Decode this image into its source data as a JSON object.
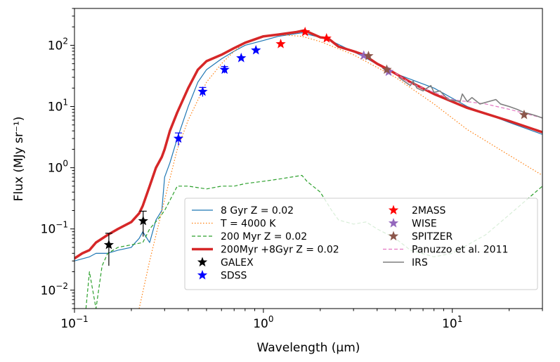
{
  "chart_data": {
    "type": "line",
    "xscale": "log",
    "yscale": "log",
    "xlim": [
      0.1,
      30
    ],
    "ylim": [
      0.005,
      400
    ],
    "xlabel": "Wavelength (μm)",
    "ylabel": "Flux (MJy sr⁻¹)",
    "x_ticks": [
      {
        "value": 0.1,
        "base": "10",
        "exp": "−1"
      },
      {
        "value": 1,
        "base": "10",
        "exp": "0"
      },
      {
        "value": 10,
        "base": "10",
        "exp": "1"
      }
    ],
    "y_ticks": [
      {
        "value": 0.01,
        "base": "10",
        "exp": "−2"
      },
      {
        "value": 0.1,
        "base": "10",
        "exp": "−1"
      },
      {
        "value": 1,
        "base": "10",
        "exp": "0"
      },
      {
        "value": 10,
        "base": "10",
        "exp": "1"
      },
      {
        "value": 100,
        "base": "10",
        "exp": "2"
      }
    ],
    "series": [
      {
        "name": "8 Gyr Z = 0.02",
        "style": "solid",
        "color": "#1f77b4",
        "width": 1.2,
        "x": [
          0.1,
          0.12,
          0.13,
          0.15,
          0.17,
          0.2,
          0.21,
          0.22,
          0.23,
          0.25,
          0.27,
          0.29,
          0.3,
          0.32,
          0.35,
          0.4,
          0.45,
          0.5,
          0.6,
          0.7,
          0.8,
          1.0,
          1.2,
          1.6,
          2.2,
          3.4,
          4.6,
          8,
          12,
          20,
          30
        ],
        "y": [
          0.03,
          0.035,
          0.04,
          0.04,
          0.045,
          0.05,
          0.06,
          0.07,
          0.09,
          0.06,
          0.14,
          0.2,
          0.7,
          1.2,
          3,
          10,
          25,
          40,
          60,
          80,
          100,
          120,
          140,
          160,
          125,
          65,
          38,
          20,
          10,
          5.5,
          3.5
        ]
      },
      {
        "name": "T = 4000 K",
        "style": "dotted",
        "color": "#ff7f0e",
        "width": 1.2,
        "x": [
          0.22,
          0.25,
          0.3,
          0.35,
          0.4,
          0.5,
          0.6,
          0.7,
          0.8,
          1.0,
          1.2,
          1.6,
          2.0,
          3,
          5,
          8,
          12,
          20,
          30
        ],
        "y": [
          0.005,
          0.03,
          0.3,
          2,
          6,
          25,
          50,
          80,
          110,
          140,
          150,
          140,
          115,
          70,
          30,
          11,
          4.2,
          1.6,
          0.75
        ]
      },
      {
        "name": "200 Myr Z = 0.02",
        "style": "dashed",
        "color": "#2ca02c",
        "width": 1.2,
        "x": [
          0.115,
          0.12,
          0.13,
          0.14,
          0.15,
          0.17,
          0.2,
          0.23,
          0.25,
          0.28,
          0.3,
          0.35,
          0.4,
          0.5,
          0.6,
          0.7,
          0.8,
          1.0,
          1.2,
          1.6,
          1.7,
          2.0,
          2.3,
          2.5,
          3,
          3.5,
          4,
          5,
          6,
          8,
          10,
          15,
          20,
          30
        ],
        "y": [
          0.005,
          0.02,
          0.005,
          0.025,
          0.04,
          0.05,
          0.055,
          0.06,
          0.1,
          0.15,
          0.2,
          0.5,
          0.5,
          0.45,
          0.5,
          0.5,
          0.55,
          0.6,
          0.65,
          0.75,
          0.6,
          0.4,
          0.2,
          0.14,
          0.12,
          0.13,
          0.1,
          0.07,
          0.045,
          0.035,
          0.04,
          0.08,
          0.17,
          0.5
        ]
      },
      {
        "name": "200Myr +8Gyr  Z = 0.02",
        "style": "solid",
        "color": "#d62728",
        "width": 3.5,
        "x": [
          0.1,
          0.11,
          0.12,
          0.13,
          0.15,
          0.17,
          0.2,
          0.22,
          0.23,
          0.25,
          0.27,
          0.29,
          0.3,
          0.32,
          0.35,
          0.4,
          0.45,
          0.5,
          0.6,
          0.7,
          0.8,
          1.0,
          1.2,
          1.5,
          1.65,
          2.0,
          2.2,
          2.5,
          3,
          3.4,
          4,
          4.6,
          6,
          8,
          12,
          20,
          30
        ],
        "y": [
          0.033,
          0.04,
          0.045,
          0.06,
          0.08,
          0.1,
          0.13,
          0.18,
          0.24,
          0.5,
          1,
          1.5,
          2,
          4,
          8,
          20,
          40,
          55,
          70,
          90,
          110,
          140,
          150,
          165,
          175,
          135,
          130,
          95,
          80,
          70,
          50,
          40,
          25,
          16,
          9.5,
          5.8,
          3.8
        ]
      },
      {
        "name": "Panuzzo et al. 2011",
        "style": "dashed",
        "color": "#e377c2",
        "width": 1.2,
        "x": [
          5,
          6,
          8,
          10,
          12,
          15,
          20,
          25,
          30
        ],
        "y": [
          35,
          24,
          17,
          13,
          12,
          11,
          9,
          7.5,
          6.5
        ]
      },
      {
        "name": "IRS",
        "style": "solid",
        "color": "#7f7f7f",
        "width": 1.6,
        "x": [
          5.2,
          6,
          6.2,
          6.5,
          7.0,
          7.7,
          8.0,
          8.6,
          9.5,
          11.0,
          11.3,
          12.0,
          12.7,
          14,
          15.5,
          17,
          18,
          20,
          22,
          24,
          26,
          28,
          30
        ],
        "y": [
          30,
          22,
          26,
          20,
          18,
          22,
          17,
          18,
          13,
          12,
          16,
          12,
          14,
          11,
          12,
          13,
          11,
          10,
          9,
          8,
          7.5,
          7,
          6.5
        ]
      }
    ],
    "markers": [
      {
        "name": "GALEX",
        "color": "#000000",
        "x": [
          0.152,
          0.231
        ],
        "y": [
          0.055,
          0.135
        ],
        "yerr": [
          0.03,
          0.06
        ]
      },
      {
        "name": "SDSS",
        "color": "#0000ff",
        "x": [
          0.355,
          0.477,
          0.623,
          0.763,
          0.913
        ],
        "y": [
          3.0,
          17.5,
          40,
          62,
          83
        ],
        "yerr": [
          0.7,
          3,
          5,
          0,
          0
        ]
      },
      {
        "name": "2MASS",
        "color": "#ff0000",
        "x": [
          1.235,
          1.662,
          2.159
        ],
        "y": [
          105,
          165,
          130
        ],
        "yerr": [
          0,
          0,
          0
        ]
      },
      {
        "name": "WISE",
        "color": "#9467bd",
        "x": [
          3.4,
          4.6
        ],
        "y": [
          68,
          37
        ],
        "yerr": [
          0,
          0
        ]
      },
      {
        "name": "SPITZER",
        "color": "#8c564b",
        "x": [
          3.6,
          4.5,
          24
        ],
        "y": [
          67,
          40,
          7.3
        ],
        "yerr": [
          0,
          0,
          0
        ]
      }
    ],
    "legend": {
      "placement": "lower-right",
      "entries": [
        {
          "label": "8 Gyr Z = 0.02",
          "kind": "line",
          "style": "solid",
          "color": "#1f77b4",
          "width": 1.2
        },
        {
          "label": "T = 4000 K",
          "kind": "line",
          "style": "dotted",
          "color": "#ff7f0e",
          "width": 1.2
        },
        {
          "label": "200 Myr Z = 0.02",
          "kind": "line",
          "style": "dashed",
          "color": "#2ca02c",
          "width": 1.2
        },
        {
          "label": "200Myr +8Gyr  Z = 0.02",
          "kind": "line",
          "style": "solid",
          "color": "#d62728",
          "width": 3.5
        },
        {
          "label": "GALEX",
          "kind": "star",
          "color": "#000000"
        },
        {
          "label": "SDSS",
          "kind": "star",
          "color": "#0000ff"
        },
        {
          "label": "2MASS",
          "kind": "star",
          "color": "#ff0000"
        },
        {
          "label": "WISE",
          "kind": "star",
          "color": "#9467bd"
        },
        {
          "label": "SPITZER",
          "kind": "star",
          "color": "#8c564b"
        },
        {
          "label": "Panuzzo et al. 2011",
          "kind": "line",
          "style": "dashed",
          "color": "#e377c2",
          "width": 1.2
        },
        {
          "label": "IRS",
          "kind": "line",
          "style": "solid",
          "color": "#7f7f7f",
          "width": 1.6
        }
      ]
    }
  }
}
